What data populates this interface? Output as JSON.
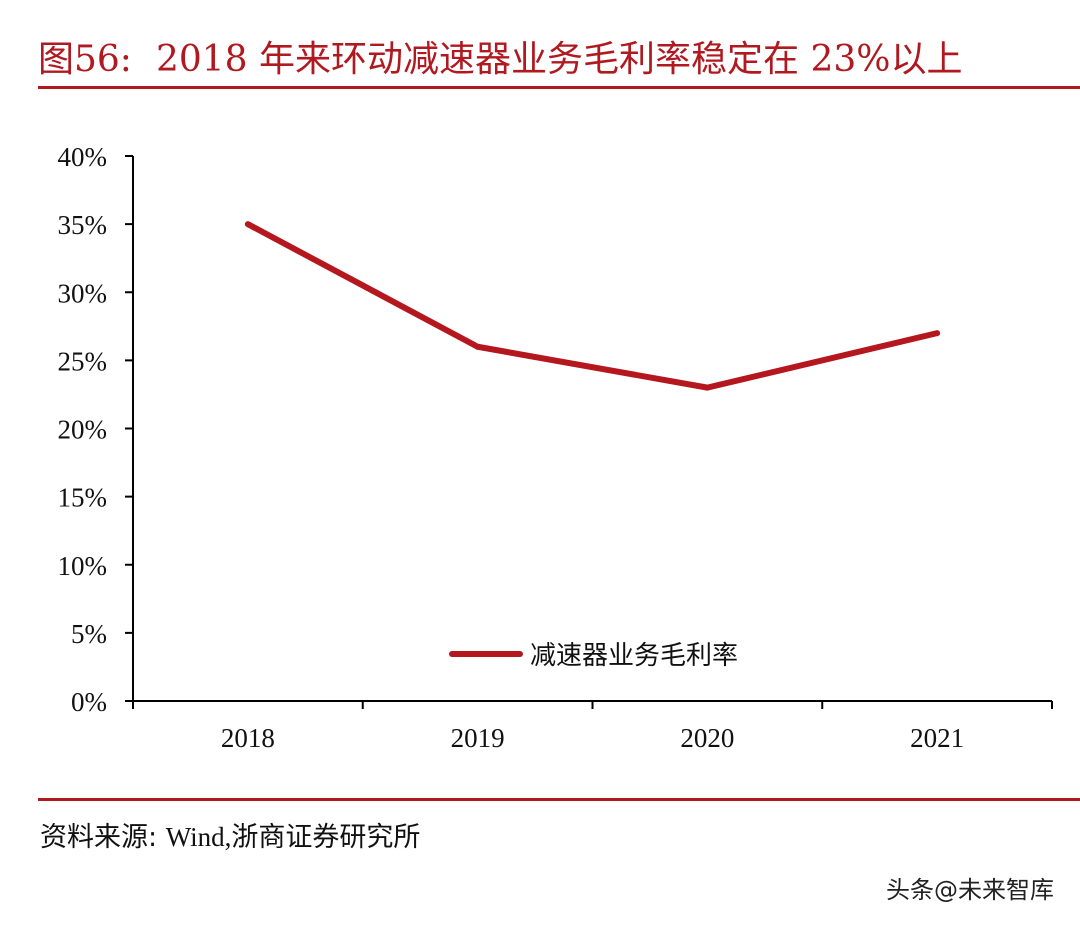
{
  "header": {
    "figure_number": "图56:",
    "title_text": "2018 年来环动减速器业务毛利率稳定在 23%以上"
  },
  "chart_data": {
    "type": "line",
    "title": "2018 年来环动减速器业务毛利率稳定在 23%以上",
    "categories": [
      "2018",
      "2019",
      "2020",
      "2021"
    ],
    "series": [
      {
        "name": "减速器业务毛利率",
        "values": [
          35,
          26,
          23,
          27
        ],
        "color": "#b5171e"
      }
    ],
    "ylim": [
      0,
      40
    ],
    "yticks": [
      0,
      5,
      10,
      15,
      20,
      25,
      30,
      35,
      40
    ],
    "ytick_labels": [
      "0%",
      "5%",
      "10%",
      "15%",
      "20%",
      "25%",
      "30%",
      "35%",
      "40%"
    ],
    "xlabel": "",
    "ylabel": "",
    "legend_position": "bottom-center",
    "grid": false
  },
  "footer": {
    "source_label": "资料来源:",
    "source_value": "Wind,浙商证券研究所"
  },
  "watermark": {
    "prefix": "头条",
    "icon": "at-sign-icon",
    "name": "@未来智库"
  },
  "colors": {
    "accent": "#b0191f",
    "line": "#b5171e",
    "axis": "#000000"
  }
}
